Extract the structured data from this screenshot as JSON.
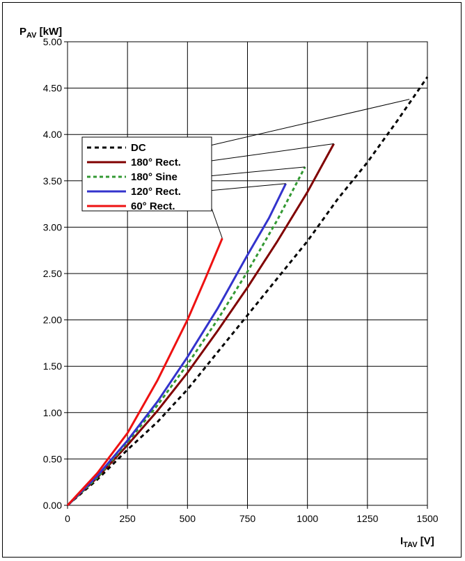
{
  "chart_data": {
    "type": "line",
    "ylabel_main": "P",
    "ylabel_sub": "AV",
    "ylabel_unit": " [kW]",
    "xlabel_main": "I",
    "xlabel_sub": "TAV",
    "xlabel_unit": " [V]",
    "xlim": [
      0,
      1500
    ],
    "ylim": [
      0,
      5
    ],
    "xticks": [
      0,
      250,
      500,
      750,
      1000,
      1250,
      1500
    ],
    "xtick_labels": [
      "0",
      "250",
      "500",
      "750",
      "1000",
      "1250",
      "1500"
    ],
    "yticks": [
      0,
      0.5,
      1,
      1.5,
      2,
      2.5,
      3,
      3.5,
      4,
      4.5,
      5
    ],
    "ytick_labels": [
      "0.00",
      "0.50",
      "1.00",
      "1.50",
      "2.00",
      "2.50",
      "3.00",
      "3.50",
      "4.00",
      "4.50",
      "5.00"
    ],
    "grid": true,
    "legend_position": "upper-left",
    "series": [
      {
        "name": "DC",
        "color": "#000000",
        "style": "dashed",
        "x": [
          0,
          125,
          250,
          375,
          500,
          625,
          750,
          875,
          1000,
          1125,
          1250,
          1375,
          1500
        ],
        "y": [
          0,
          0.28,
          0.6,
          0.9,
          1.25,
          1.65,
          2.05,
          2.45,
          2.85,
          3.3,
          3.7,
          4.15,
          4.62
        ]
      },
      {
        "name": "180° Rect.",
        "color": "#800000",
        "style": "solid",
        "x": [
          0,
          125,
          250,
          375,
          500,
          625,
          750,
          875,
          1000,
          1110
        ],
        "y": [
          0,
          0.3,
          0.65,
          1.02,
          1.43,
          1.88,
          2.35,
          2.85,
          3.38,
          3.9
        ]
      },
      {
        "name": "180° Sine",
        "color": "#339933",
        "style": "dashed",
        "x": [
          0,
          125,
          250,
          375,
          500,
          625,
          750,
          875,
          990
        ],
        "y": [
          0,
          0.3,
          0.68,
          1.08,
          1.52,
          2.0,
          2.52,
          3.08,
          3.65
        ]
      },
      {
        "name": "120° Rect.",
        "color": "#3333cc",
        "style": "solid",
        "x": [
          0,
          125,
          250,
          375,
          500,
          625,
          750,
          840,
          910
        ],
        "y": [
          0,
          0.32,
          0.7,
          1.12,
          1.6,
          2.12,
          2.7,
          3.1,
          3.47
        ]
      },
      {
        "name": "60° Rect.",
        "color": "#ee1111",
        "style": "solid",
        "x": [
          0,
          125,
          250,
          375,
          500,
          575,
          645
        ],
        "y": [
          0,
          0.35,
          0.78,
          1.35,
          2.0,
          2.45,
          2.88
        ]
      }
    ]
  }
}
